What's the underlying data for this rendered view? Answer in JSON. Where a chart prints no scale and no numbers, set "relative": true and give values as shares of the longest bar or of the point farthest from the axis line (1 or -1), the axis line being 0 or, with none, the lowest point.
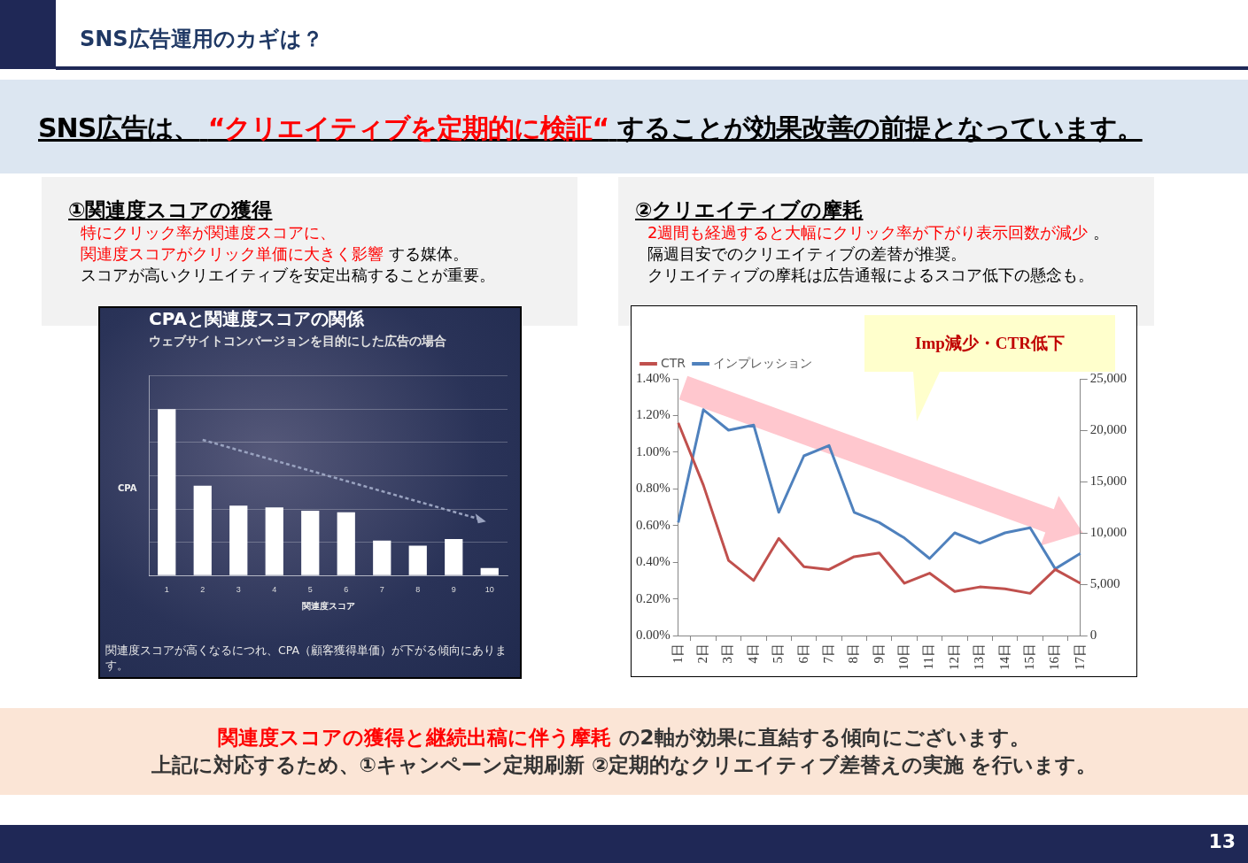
{
  "chart_data": [
    {
      "type": "other",
      "title": "SNS広告運用のカギは？",
      "annotations": [
        "SNS広告は、",
        "“クリエイティブを定期的に検証“",
        "することが効果改善の前提となっています。"
      ],
      "colors": [
        "#000000",
        "#ff0000",
        "#000000"
      ]
    },
    {
      "type": "other",
      "title": "①関連度スコアの獲得",
      "annotations": [
        "特にクリック率が関連度スコアに、",
        "関連度スコアがクリック単価に大きく影響",
        "する媒体。",
        "スコアが高いクリエイティブを安定出稿することが重要。"
      ],
      "colors": [
        "#ff0000",
        "#ff0000",
        "#000000",
        "#000000"
      ]
    },
    {
      "type": "bar",
      "title": "CPAと関連度スコアの関係",
      "subtitle": "ウェブサイトコンバージョンを目的にした広告の場合",
      "xlabel": "関連度スコア",
      "ylabel": "CPA",
      "categories": [
        "1",
        "2",
        "3",
        "4",
        "5",
        "6",
        "7",
        "8",
        "9",
        "10"
      ],
      "values": [
        1,
        0.54,
        0.42,
        0.41,
        0.39,
        0.38,
        0.21,
        0.18,
        0.22,
        0.045
      ],
      "color": "#ffffff",
      "relative": true,
      "grid": true,
      "annotations": [
        "関連度スコアが高くなるにつれ、CPA（顧客獲得単価）が下がる傾向にあります。"
      ]
    },
    {
      "type": "other",
      "title": "②クリエイティブの摩耗",
      "annotations": [
        "2週間も経過すると大幅にクリック率が下がり表示回数が減少",
        "。",
        "隔週目安でのクリエイティブの差替が推奨。",
        "クリエイティブの摩耗は広告通報によるスコア低下の懸念も。"
      ],
      "colors": [
        "#ff0000",
        "#000000",
        "#000000",
        "#000000"
      ]
    },
    {
      "type": "line",
      "categories": [
        "1日",
        "2日",
        "3日",
        "4日",
        "5日",
        "6日",
        "7日",
        "8日",
        "9日",
        "10日",
        "11日",
        "12日",
        "13日",
        "14日",
        "15日",
        "16日",
        "17日"
      ],
      "series": [
        {
          "name": "CTR",
          "color": "#c0504d",
          "values": [
            1.16,
            0.82,
            0.41,
            0.3,
            0.53,
            0.375,
            0.36,
            0.43,
            0.45,
            0.285,
            0.34,
            0.24,
            0.265,
            0.255,
            0.23,
            0.36,
            0.285
          ]
        },
        {
          "name": "インプレッション",
          "color": "#4f81bd",
          "axis": "y2",
          "values": [
            11000,
            22000,
            20000,
            20500,
            12000,
            17500,
            18500,
            12000,
            11000,
            9500,
            7500,
            10000,
            9000,
            10000,
            10500,
            6500,
            8000
          ]
        }
      ],
      "ylim": [
        0,
        1.4
      ],
      "yticks": [
        {
          "value": 0,
          "label": "0.00%"
        },
        {
          "value": 0.2,
          "label": "0.20%"
        },
        {
          "value": 0.4,
          "label": "0.40%"
        },
        {
          "value": 0.6,
          "label": "0.60%"
        },
        {
          "value": 0.8,
          "label": "0.80%"
        },
        {
          "value": 1,
          "label": "1.00%"
        },
        {
          "value": 1.2,
          "label": "1.20%"
        },
        {
          "value": 1.4,
          "label": "1.40%"
        }
      ],
      "y2lim": [
        0,
        25000
      ],
      "y2ticks": [
        0,
        {
          "value": 5000,
          "label": "5,000"
        },
        {
          "value": 10000,
          "label": "10,000"
        },
        {
          "value": 15000,
          "label": "15,000"
        },
        {
          "value": 20000,
          "label": "20,000"
        },
        {
          "value": 25000,
          "label": "25,000"
        }
      ],
      "grid": false,
      "legend": "top left",
      "marker": "none",
      "annotations": [
        "Imp減少・CTR低下"
      ]
    },
    {
      "type": "other",
      "annotations": [
        "関連度スコアの獲得と継続出稿に伴う摩耗",
        "の2軸が効果に直結する傾向にございます。",
        "上記に対応するため、①キャンペーン定期刷新 ②定期的なクリエイティブ差替えの実施 を行います。",
        "13"
      ],
      "colors": [
        "#ff0000",
        "#333333",
        "#333333",
        "#ffffff"
      ]
    }
  ]
}
